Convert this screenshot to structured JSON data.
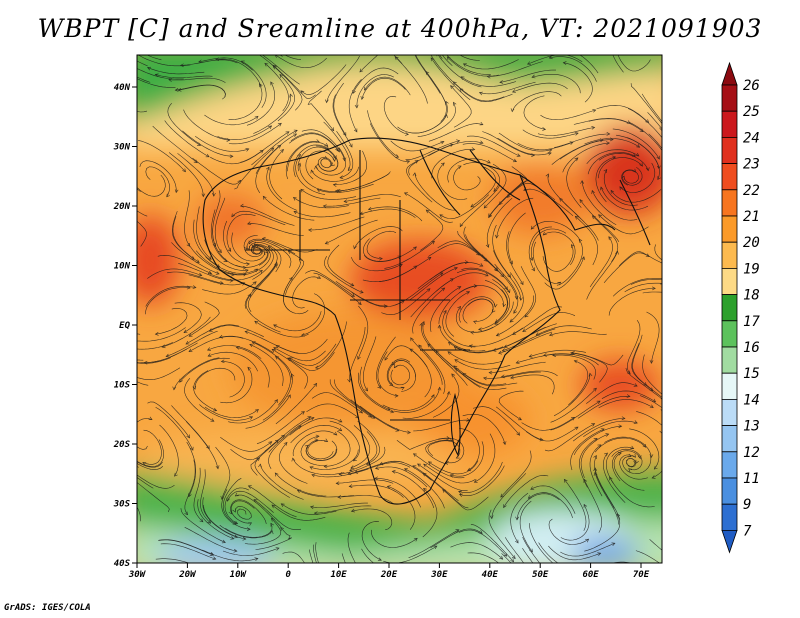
{
  "title": "WBPT [C] and Sreamline at 400hPa, VT: 2021091903",
  "footer": "GrADS: IGES/COLA",
  "map": {
    "lon_range": [
      -30,
      76
    ],
    "lat_range": [
      -40,
      46
    ],
    "x_ticks": [
      "30W",
      "20W",
      "10W",
      "0",
      "10E",
      "20E",
      "30E",
      "40E",
      "50E",
      "60E",
      "70E"
    ],
    "y_ticks": [
      "40S",
      "30S",
      "20S",
      "10S",
      "EQ",
      "10N",
      "20N",
      "30N",
      "40N"
    ]
  },
  "colorbar": {
    "labels": [
      "26",
      "25",
      "24",
      "23",
      "22",
      "21",
      "20",
      "19",
      "18",
      "17",
      "16",
      "15",
      "14",
      "13",
      "12",
      "11",
      "9",
      "7"
    ],
    "colors": [
      "#a50f15",
      "#cb181d",
      "#e0301e",
      "#ef4d1f",
      "#f7751f",
      "#fb9a29",
      "#fdba4f",
      "#fdda86",
      "#2ca02c",
      "#5cc25c",
      "#a1dca1",
      "#e6f7f7",
      "#bbdcf7",
      "#95c5f1",
      "#6aa9eb",
      "#4a8fe0",
      "#2d6fd1",
      "#1f5cc4"
    ]
  }
}
